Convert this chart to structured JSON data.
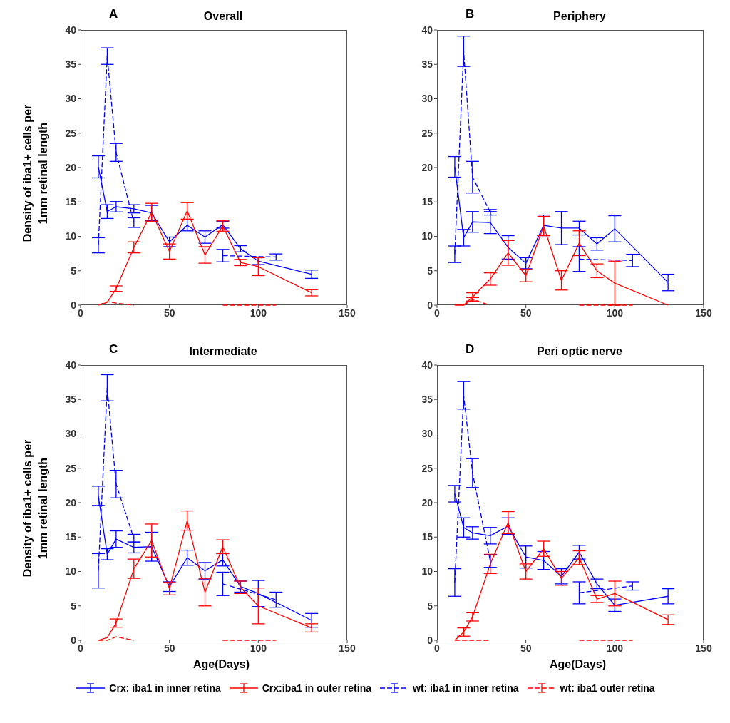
{
  "chart_data": [
    {
      "type": "line",
      "title": "Overall",
      "ylabel": "Density of iba1+ cells per 1mm retinal length",
      "annotations": [
        "A"
      ],
      "xlim": [
        0,
        150
      ],
      "xticks": [
        0,
        50,
        100,
        150
      ],
      "ylim": [
        0,
        40
      ],
      "yticks": [
        0,
        5,
        10,
        15,
        20,
        25,
        30,
        35,
        40
      ],
      "grid": false,
      "legend": "bottom",
      "marker": "none",
      "series": [
        {
          "name": "Crx: iba1 in inner retina",
          "color": "#0000ff",
          "line_style": "solid",
          "x": [
            10,
            15,
            20,
            30,
            40,
            50,
            60,
            70,
            80,
            90,
            100,
            130
          ],
          "values": [
            20.1,
            13.6,
            14.3,
            14.0,
            13.4,
            9.2,
            11.6,
            9.9,
            11.7,
            8.2,
            6.4,
            4.5
          ],
          "errors": [
            1.6,
            1.0,
            0.75,
            0.6,
            1.1,
            0.7,
            0.8,
            0.9,
            0.5,
            0.45,
            0.5,
            0.6
          ]
        },
        {
          "name": "Crx:iba1 in outer retina",
          "color": "#ff0000",
          "line_style": "solid",
          "x": [
            10,
            15,
            20,
            30,
            40,
            50,
            60,
            70,
            80,
            90,
            100,
            130
          ],
          "values": [
            0,
            0.4,
            2.4,
            8.4,
            13.5,
            7.8,
            13.7,
            7.3,
            11.5,
            6.2,
            5.6,
            1.8
          ],
          "errors": [
            null,
            null,
            0.4,
            0.8,
            1.3,
            1.1,
            1.2,
            1.2,
            0.75,
            0.45,
            1.3,
            0.45
          ]
        },
        {
          "name": "wt: iba1 in inner retina",
          "color": "#0000ff",
          "line_style": "dashed",
          "x": [
            10,
            15,
            20,
            30,
            50,
            80,
            110
          ],
          "values": [
            8.7,
            36.2,
            22.2,
            12.0,
            null,
            7.2,
            7.0
          ],
          "errors": [
            1.1,
            1.2,
            1.3,
            0.7,
            null,
            0.9,
            0.45
          ]
        },
        {
          "name": "wt: iba1 outer retina",
          "color": "#ff0000",
          "line_style": "dashed",
          "x": [
            10,
            15,
            20,
            30,
            50,
            80,
            100,
            110
          ],
          "values": [
            0,
            0.5,
            0.3,
            0,
            null,
            0,
            0,
            0
          ]
        }
      ]
    },
    {
      "type": "line",
      "title": "Periphery",
      "annotations": [
        "B"
      ],
      "xlim": [
        0,
        150
      ],
      "xticks": [
        0,
        50,
        100,
        150
      ],
      "ylim": [
        0,
        40
      ],
      "yticks": [
        0,
        5,
        10,
        15,
        20,
        25,
        30,
        35,
        40
      ],
      "grid": false,
      "legend": "bottom",
      "marker": "none",
      "series": [
        {
          "name": "Crx: iba1 in inner retina",
          "color": "#0000ff",
          "line_style": "solid",
          "x": [
            10,
            15,
            20,
            30,
            40,
            50,
            60,
            70,
            80,
            90,
            100,
            130
          ],
          "values": [
            20.1,
            9.8,
            12.1,
            12.0,
            8.4,
            6.1,
            11.6,
            11.2,
            11.2,
            8.9,
            11.1,
            3.3
          ],
          "errors": [
            1.5,
            1.2,
            1.5,
            1.6,
            1.7,
            0.8,
            1.5,
            2.4,
            1.0,
            0.9,
            1.9,
            1.2
          ]
        },
        {
          "name": "Crx:iba1 in outer retina",
          "color": "#ff0000",
          "line_style": "solid",
          "x": [
            10,
            15,
            20,
            30,
            40,
            50,
            60,
            70,
            80,
            90,
            100,
            130
          ],
          "values": [
            0,
            0,
            1.2,
            3.8,
            7.6,
            4.3,
            11.5,
            3.6,
            9.0,
            5.0,
            3.2,
            0
          ],
          "errors": [
            null,
            null,
            0.6,
            0.9,
            1.8,
            0.9,
            1.4,
            1.4,
            1.8,
            1.0,
            3.2,
            null
          ]
        },
        {
          "name": "wt: iba1 in inner retina",
          "color": "#0000ff",
          "line_style": "dashed",
          "x": [
            10,
            15,
            20,
            30,
            50,
            80,
            110
          ],
          "values": [
            7.4,
            36.9,
            18.6,
            13.5,
            null,
            6.7,
            6.5
          ],
          "errors": [
            1.2,
            2.2,
            2.3,
            0.4,
            null,
            1.8,
            0.9
          ]
        },
        {
          "name": "wt: iba1 outer retina",
          "color": "#ff0000",
          "line_style": "dashed",
          "x": [
            15,
            20,
            30,
            50,
            80,
            100,
            110
          ],
          "values": [
            0,
            0.8,
            0,
            null,
            0,
            0,
            0
          ],
          "errors": [
            null,
            0.3,
            null,
            null,
            null,
            null,
            null
          ]
        }
      ]
    },
    {
      "type": "line",
      "title": "Intermediate",
      "ylabel": "Density of iba1+ cells per 1mm retinal length",
      "xlabel": "Age(Days)",
      "annotations": [
        "C"
      ],
      "xlim": [
        0,
        150
      ],
      "xticks": [
        0,
        50,
        100,
        150
      ],
      "ylim": [
        0,
        40
      ],
      "yticks": [
        0,
        5,
        10,
        15,
        20,
        25,
        30,
        35,
        40
      ],
      "grid": false,
      "legend": "bottom",
      "marker": "none",
      "series": [
        {
          "name": "Crx: iba1 in inner retina",
          "color": "#0000ff",
          "line_style": "solid",
          "x": [
            10,
            15,
            20,
            30,
            40,
            50,
            60,
            70,
            80,
            90,
            100,
            130
          ],
          "values": [
            21.0,
            12.5,
            14.7,
            13.5,
            13.6,
            7.8,
            12.0,
            10.1,
            11.7,
            7.8,
            6.8,
            2.9
          ],
          "errors": [
            1.4,
            0.8,
            1.2,
            0.8,
            2.1,
            0.7,
            1.1,
            1.2,
            0.9,
            0.8,
            1.9,
            1.0
          ]
        },
        {
          "name": "Crx:iba1 in outer retina",
          "color": "#ff0000",
          "line_style": "solid",
          "x": [
            10,
            15,
            20,
            30,
            40,
            50,
            60,
            70,
            80,
            90,
            100,
            130
          ],
          "values": [
            0,
            0.4,
            2.5,
            10.4,
            14.5,
            7.5,
            17.4,
            7.0,
            13.6,
            7.7,
            5.0,
            1.8
          ],
          "errors": [
            null,
            null,
            0.6,
            1.4,
            2.4,
            0.9,
            1.4,
            2.0,
            1.0,
            0.9,
            2.6,
            0.6
          ]
        },
        {
          "name": "wt: iba1 in inner retina",
          "color": "#0000ff",
          "line_style": "dashed",
          "x": [
            10,
            15,
            20,
            30,
            50,
            80,
            110
          ],
          "values": [
            10.1,
            36.7,
            22.7,
            14.8,
            null,
            8.2,
            5.9
          ],
          "errors": [
            2.5,
            1.9,
            2.0,
            0.6,
            null,
            1.7,
            1.1
          ]
        },
        {
          "name": "wt: iba1 outer retina",
          "color": "#ff0000",
          "line_style": "dashed",
          "x": [
            10,
            15,
            20,
            30,
            50,
            80,
            100,
            110
          ],
          "values": [
            0,
            0,
            0.5,
            0,
            null,
            0,
            0,
            0
          ]
        }
      ]
    },
    {
      "type": "line",
      "title": "Peri optic nerve",
      "xlabel": "Age(Days)",
      "annotations": [
        "D"
      ],
      "xlim": [
        0,
        150
      ],
      "xticks": [
        0,
        50,
        100,
        150
      ],
      "ylim": [
        0,
        40
      ],
      "yticks": [
        0,
        5,
        10,
        15,
        20,
        25,
        30,
        35,
        40
      ],
      "grid": false,
      "legend": "bottom",
      "marker": "none",
      "series": [
        {
          "name": "Crx: iba1 in inner retina",
          "color": "#0000ff",
          "line_style": "solid",
          "x": [
            10,
            15,
            20,
            30,
            40,
            50,
            60,
            70,
            80,
            90,
            100,
            130
          ],
          "values": [
            21.3,
            16.4,
            15.6,
            15.2,
            16.6,
            12.1,
            11.6,
            9.3,
            12.8,
            8.2,
            5.1,
            6.4
          ],
          "errors": [
            1.2,
            1.4,
            0.9,
            1.2,
            1.2,
            1.6,
            1.3,
            1.1,
            1.0,
            0.7,
            0.9,
            1.1
          ]
        },
        {
          "name": "Crx:iba1 in outer retina",
          "color": "#ff0000",
          "line_style": "solid",
          "x": [
            10,
            15,
            20,
            30,
            40,
            50,
            60,
            70,
            80,
            90,
            100,
            130
          ],
          "values": [
            0,
            1.2,
            3.4,
            11.1,
            17.1,
            10.0,
            13.3,
            9.0,
            12.0,
            6.0,
            6.8,
            3.0
          ],
          "errors": [
            null,
            0.6,
            0.6,
            1.4,
            1.6,
            1.1,
            1.1,
            1.0,
            1.0,
            0.5,
            1.8,
            0.7
          ]
        },
        {
          "name": "wt: iba1 in inner retina",
          "color": "#0000ff",
          "line_style": "dashed",
          "x": [
            10,
            15,
            20,
            30,
            50,
            80,
            110
          ],
          "values": [
            8.4,
            35.6,
            24.3,
            11.5,
            null,
            6.9,
            7.9
          ],
          "errors": [
            2.0,
            2.0,
            2.1,
            0.9,
            null,
            1.6,
            0.6
          ]
        },
        {
          "name": "wt: iba1 outer retina",
          "color": "#ff0000",
          "line_style": "dashed",
          "x": [
            10,
            15,
            20,
            30,
            50,
            80,
            100,
            110
          ],
          "values": [
            0,
            0,
            0,
            0,
            null,
            0,
            0,
            0
          ]
        }
      ]
    }
  ]
}
